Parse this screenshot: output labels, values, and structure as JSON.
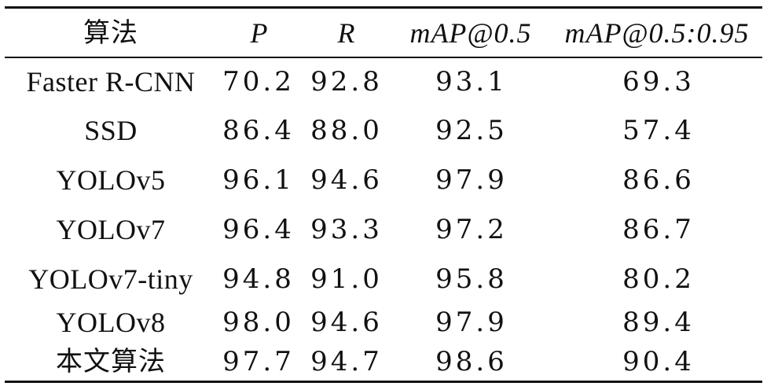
{
  "table": {
    "headers": [
      "算法",
      "P",
      "R",
      "mAP@0.5",
      "mAP@0.5:0.95"
    ],
    "rows": [
      [
        "Faster R-CNN",
        "70.2",
        "92.8",
        "93.1",
        "69.3"
      ],
      [
        "SSD",
        "86.4",
        "88.0",
        "92.5",
        "57.4"
      ],
      [
        "YOLOv5",
        "96.1",
        "94.6",
        "97.9",
        "86.6"
      ],
      [
        "YOLOv7",
        "96.4",
        "93.3",
        "97.2",
        "86.7"
      ],
      [
        "YOLOv7-tiny",
        "94.8",
        "91.0",
        "95.8",
        "80.2"
      ],
      [
        "YOLOv8",
        "98.0",
        "94.6",
        "97.9",
        "89.4"
      ],
      [
        "本文算法",
        "97.7",
        "94.7",
        "98.6",
        "90.4"
      ]
    ]
  }
}
